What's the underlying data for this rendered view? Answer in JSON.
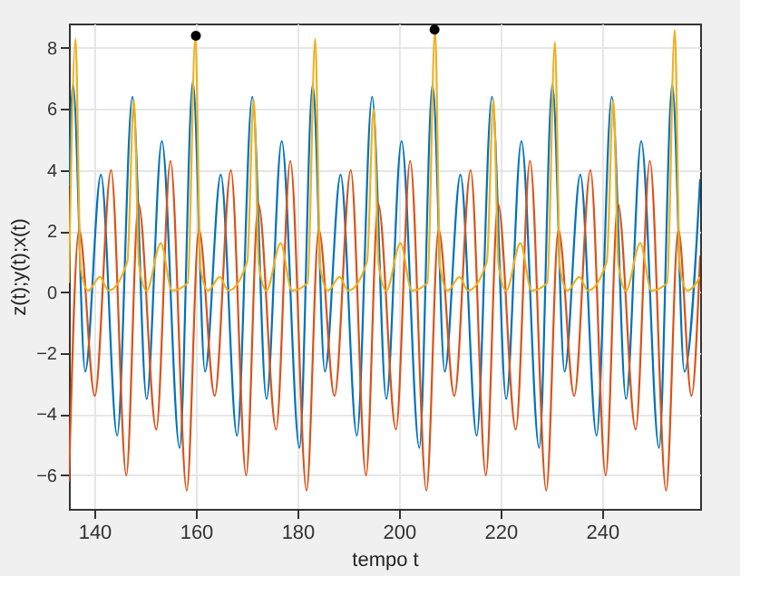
{
  "chart_data": {
    "type": "line",
    "xlabel": "tempo t",
    "ylabel": "z(t);y(t);x(t)",
    "xlim": [
      135,
      259.3
    ],
    "xticks": [
      140,
      160,
      180,
      200,
      220,
      240
    ],
    "ylim": [
      -7.1,
      8.8
    ],
    "yticks": [
      -6,
      -4,
      -2,
      0,
      2,
      4,
      6,
      8
    ],
    "grid": true,
    "series": [
      {
        "color": "#0072bd",
        "x": [
          135.0,
          135.8,
          138.2,
          141.3,
          144.5,
          147.5,
          150.3,
          153.3,
          156.8,
          159.4,
          161.8,
          164.9,
          168.1,
          171.1,
          173.9,
          176.9,
          180.4,
          183.0,
          185.4,
          188.5,
          191.7,
          194.7,
          197.5,
          200.5,
          204.0,
          206.6,
          209.0,
          212.1,
          215.3,
          218.3,
          221.1,
          224.1,
          227.6,
          230.2,
          232.6,
          235.7,
          238.9,
          241.9,
          244.7,
          247.7,
          251.2,
          253.8,
          256.2,
          259.3
        ],
        "values": [
          3.5,
          6.8,
          -2.6,
          3.85,
          -4.7,
          6.4,
          -3.5,
          4.95,
          -5.1,
          6.9,
          -2.6,
          3.85,
          -4.7,
          6.4,
          -3.5,
          4.95,
          -5.1,
          6.8,
          -2.6,
          3.85,
          -4.7,
          6.4,
          -3.5,
          4.95,
          -5.1,
          6.8,
          -2.6,
          3.85,
          -4.7,
          6.4,
          -3.5,
          4.95,
          -5.1,
          6.8,
          -2.6,
          3.85,
          -4.7,
          6.4,
          -3.5,
          4.95,
          -5.1,
          6.8,
          -2.6,
          3.7
        ]
      },
      {
        "color": "#d95319",
        "x": [
          135.0,
          137.0,
          140.1,
          143.3,
          146.3,
          148.7,
          152.2,
          155.0,
          158.2,
          160.6,
          163.7,
          166.9,
          169.9,
          172.3,
          175.8,
          178.6,
          181.8,
          184.2,
          187.3,
          190.5,
          193.5,
          195.9,
          199.4,
          202.2,
          205.4,
          207.8,
          210.9,
          214.1,
          217.1,
          219.5,
          223.0,
          225.8,
          229.0,
          231.4,
          234.5,
          237.7,
          240.7,
          243.1,
          246.6,
          249.4,
          252.6,
          255.0,
          257.6,
          259.3
        ],
        "values": [
          -6.2,
          2.05,
          -3.4,
          4.0,
          -6.0,
          2.9,
          -4.5,
          4.3,
          -6.5,
          2.05,
          -3.4,
          4.0,
          -6.0,
          2.9,
          -4.5,
          4.3,
          -6.5,
          2.05,
          -3.4,
          4.0,
          -6.0,
          2.9,
          -4.5,
          4.3,
          -6.5,
          2.05,
          -3.4,
          4.0,
          -6.0,
          2.9,
          -4.5,
          4.3,
          -6.5,
          2.05,
          -3.4,
          4.0,
          -6.0,
          2.9,
          -4.5,
          4.3,
          -6.5,
          2.05,
          -3.4,
          1.2
        ]
      },
      {
        "color": "#edb120",
        "x": [
          135.0,
          136.3,
          137.3,
          138.8,
          141.1,
          142.8,
          146.5,
          147.8,
          148.8,
          150.3,
          153.1,
          155.3,
          158.4,
          159.9,
          160.9,
          162.4,
          164.7,
          166.4,
          170.1,
          171.4,
          172.4,
          173.9,
          176.7,
          178.9,
          182.0,
          183.5,
          184.5,
          186.0,
          188.3,
          190.0,
          193.7,
          195.0,
          196.0,
          197.5,
          200.3,
          202.5,
          205.6,
          207.1,
          208.1,
          209.6,
          211.9,
          213.6,
          217.3,
          218.6,
          219.6,
          221.1,
          223.9,
          226.1,
          229.2,
          230.7,
          231.7,
          233.2,
          235.5,
          237.2,
          240.9,
          242.2,
          243.2,
          244.7,
          247.5,
          249.7,
          252.8,
          254.3,
          255.3,
          256.8,
          259.3
        ],
        "values": [
          0.3,
          8.3,
          0.8,
          0.05,
          0.5,
          0.05,
          1.0,
          6.3,
          0.9,
          0.05,
          1.6,
          0.05,
          0.3,
          8.4,
          0.8,
          0.05,
          0.5,
          0.05,
          1.0,
          6.3,
          0.9,
          0.05,
          1.6,
          0.05,
          0.3,
          8.3,
          0.8,
          0.05,
          0.5,
          0.05,
          1.0,
          6.0,
          0.9,
          0.05,
          1.6,
          0.05,
          0.3,
          8.6,
          0.8,
          0.05,
          0.5,
          0.05,
          1.0,
          6.3,
          0.9,
          0.05,
          1.6,
          0.05,
          0.3,
          8.2,
          0.8,
          0.05,
          0.5,
          0.05,
          1.0,
          6.3,
          0.9,
          0.05,
          1.6,
          0.05,
          0.3,
          8.6,
          0.8,
          0.05,
          0.5
        ]
      },
      {
        "type": "scatter",
        "marker": "circle",
        "color": "#000000",
        "x": [
          160.0,
          207.0
        ],
        "values": [
          8.4,
          8.6
        ]
      }
    ]
  }
}
